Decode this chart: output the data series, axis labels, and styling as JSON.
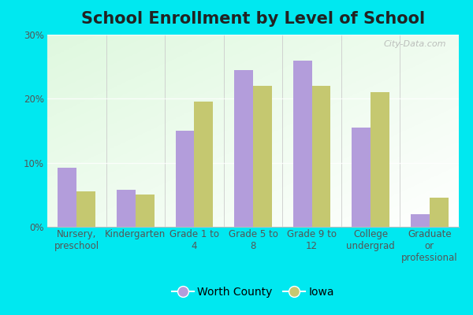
{
  "title": "School Enrollment by Level of School",
  "categories": [
    "Nursery,\npreschool",
    "Kindergarten",
    "Grade 1 to\n4",
    "Grade 5 to\n8",
    "Grade 9 to\n12",
    "College\nundergrad",
    "Graduate\nor\nprofessional"
  ],
  "worth_county": [
    9.2,
    5.8,
    15.0,
    24.5,
    26.0,
    15.5,
    2.0
  ],
  "iowa": [
    5.5,
    5.0,
    19.5,
    22.0,
    22.0,
    21.0,
    4.5
  ],
  "bar_color_wc": "#b39ddb",
  "bar_color_iowa": "#c5c870",
  "ylim": [
    0,
    30
  ],
  "yticks": [
    0,
    10,
    20,
    30
  ],
  "ytick_labels": [
    "0%",
    "10%",
    "20%",
    "30%"
  ],
  "legend_label_wc": "Worth County",
  "legend_label_iowa": "Iowa",
  "title_fontsize": 15,
  "tick_fontsize": 8.5,
  "legend_fontsize": 10,
  "bar_width": 0.32,
  "watermark": "City-Data.com",
  "outer_bg": "#00e8f0",
  "plot_bg_left": "#c8e6c0",
  "plot_bg_right": "#f0f8ee"
}
